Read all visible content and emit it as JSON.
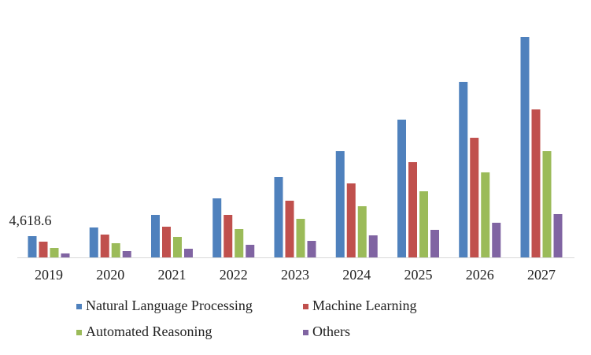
{
  "chart_data": {
    "type": "bar",
    "categories": [
      "2019",
      "2020",
      "2021",
      "2022",
      "2023",
      "2024",
      "2025",
      "2026",
      "2027"
    ],
    "series": [
      {
        "name": "Natural Language Processing",
        "color": "#4f81bd",
        "values": [
          4618.6,
          6500,
          9240,
          12830,
          17450,
          23090,
          29940,
          38150,
          47900
        ],
        "value_labels": [
          "4,618.6",
          null,
          null,
          null,
          null,
          null,
          null,
          null,
          null
        ]
      },
      {
        "name": "Machine Learning",
        "color": "#c0504d",
        "values": [
          3420,
          4960,
          6670,
          9240,
          12320,
          16080,
          20700,
          26000,
          32160
        ]
      },
      {
        "name": "Automated Reasoning",
        "color": "#9bbb59",
        "values": [
          2050,
          3080,
          4450,
          6160,
          8380,
          11120,
          14370,
          18480,
          23090
        ]
      },
      {
        "name": "Others",
        "color": "#8064a2",
        "values": [
          860,
          1370,
          1880,
          2740,
          3590,
          4790,
          5990,
          7530,
          9410
        ]
      }
    ]
  }
}
